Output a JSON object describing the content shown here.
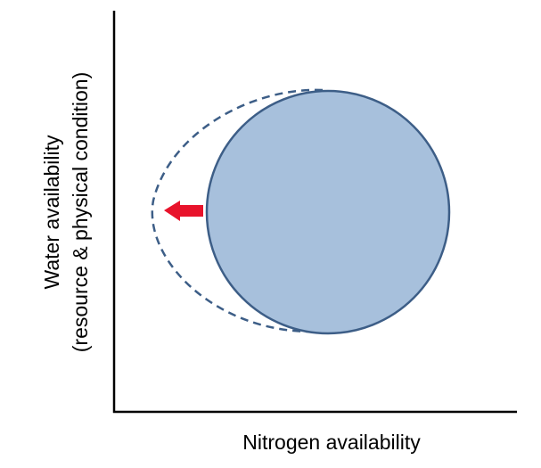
{
  "x_axis_label": "Nitrogen availability",
  "y_axis_label_line1": "Water availability",
  "y_axis_label_line2": "(resource & physical condition)",
  "colors": {
    "axis": "#000000",
    "niche_fill": "#a7c0dc",
    "niche_stroke": "#3d5e87",
    "dashed_outline": "#3d5e87",
    "arrow": "#e8132b"
  },
  "shapes": {
    "realized_niche": "solid-circle",
    "expanded_niche": "dashed-ellipse-outline",
    "shift_direction": "left-arrow"
  }
}
